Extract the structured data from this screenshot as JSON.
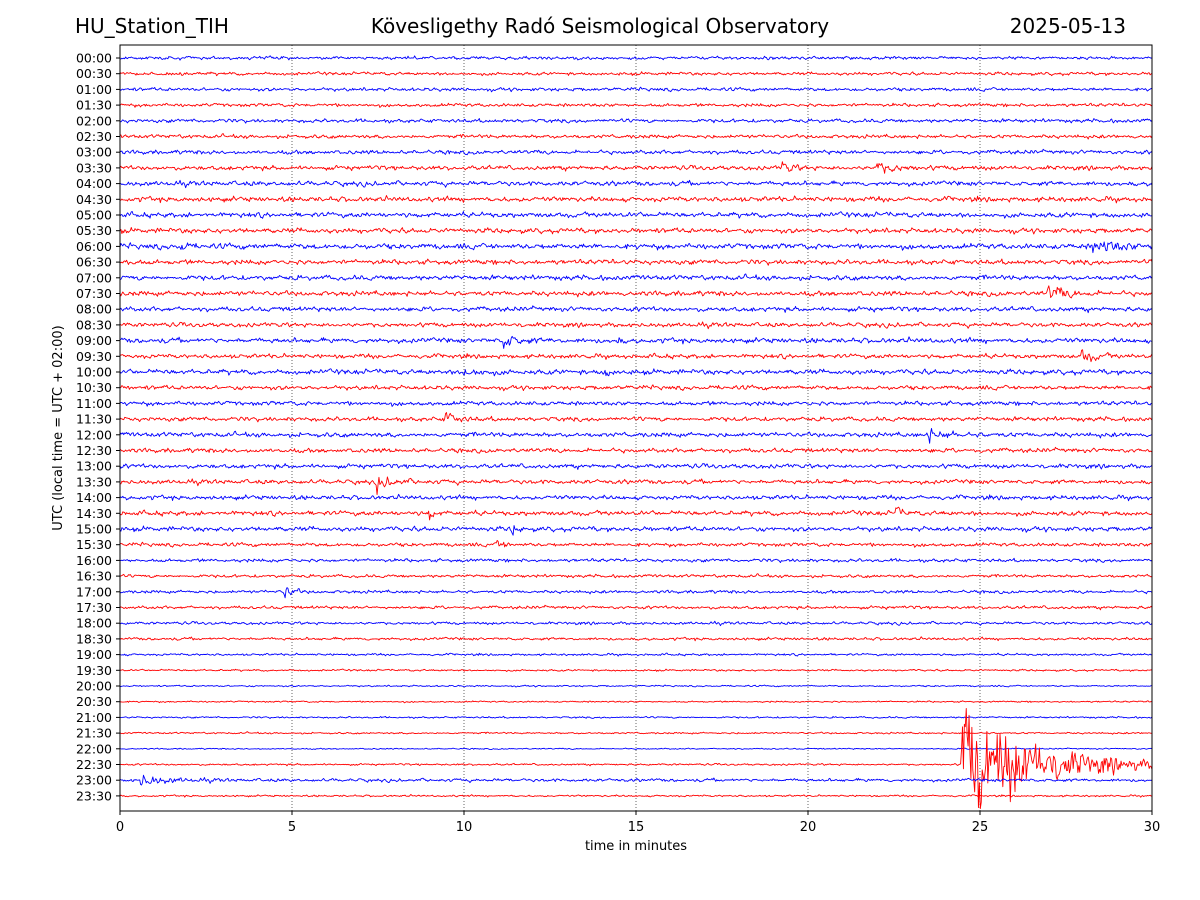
{
  "header": {
    "station": "HU_Station_TIH",
    "observatory": "Kövesligethy Radó Seismological Observatory",
    "date": "2025-05-13"
  },
  "chart_data": {
    "type": "line",
    "subtype": "helicorder",
    "xlabel": "time in minutes",
    "ylabel": "UTC (local time = UTC + 02:00)",
    "xlim": [
      0,
      30
    ],
    "x_ticks": [
      "0",
      "5",
      "10",
      "15",
      "20",
      "25",
      "30"
    ],
    "vertical_grid": true,
    "grid_style": "dotted",
    "trace_colors": [
      "#0000ff",
      "#ff0000"
    ],
    "color_rule": "alternating per row: 00 minute rows blue, 30 minute rows red",
    "rows": [
      "00:00",
      "00:30",
      "01:00",
      "01:30",
      "02:00",
      "02:30",
      "03:00",
      "03:30",
      "04:00",
      "04:30",
      "05:00",
      "05:30",
      "06:00",
      "06:30",
      "07:00",
      "07:30",
      "08:00",
      "08:30",
      "09:00",
      "09:30",
      "10:00",
      "10:30",
      "11:00",
      "11:30",
      "12:00",
      "12:30",
      "13:00",
      "13:30",
      "14:00",
      "14:30",
      "15:00",
      "15:30",
      "16:00",
      "16:30",
      "17:00",
      "17:30",
      "18:00",
      "18:30",
      "19:00",
      "19:30",
      "20:00",
      "20:30",
      "21:00",
      "21:30",
      "22:00",
      "22:30",
      "23:00",
      "23:30"
    ],
    "row_noise_level": [
      0.5,
      0.5,
      0.55,
      0.55,
      0.6,
      0.6,
      0.65,
      0.7,
      0.75,
      0.8,
      0.8,
      0.8,
      0.9,
      0.8,
      0.8,
      0.8,
      0.75,
      0.7,
      0.8,
      0.7,
      0.8,
      0.7,
      0.7,
      0.7,
      0.75,
      0.7,
      0.7,
      0.7,
      0.7,
      0.75,
      0.75,
      0.6,
      0.55,
      0.5,
      0.5,
      0.5,
      0.45,
      0.45,
      0.35,
      0.3,
      0.25,
      0.25,
      0.28,
      0.28,
      0.2,
      0.3,
      0.5,
      0.3
    ],
    "events": [
      {
        "row": "03:30",
        "minute": 19.3,
        "amplitude": 1.6,
        "duration_min": 0.8
      },
      {
        "row": "03:30",
        "minute": 22.0,
        "amplitude": 1.6,
        "duration_min": 1.5
      },
      {
        "row": "06:00",
        "minute": 1.8,
        "amplitude": 2.2,
        "duration_min": 0.2
      },
      {
        "row": "06:00",
        "minute": 28.3,
        "amplitude": 2.2,
        "duration_min": 2.0
      },
      {
        "row": "06:30",
        "minute": 0.2,
        "amplitude": 1.8,
        "duration_min": 0.4
      },
      {
        "row": "07:30",
        "minute": 27.0,
        "amplitude": 2.2,
        "duration_min": 1.5
      },
      {
        "row": "09:00",
        "minute": 11.2,
        "amplitude": 2.2,
        "duration_min": 1.0
      },
      {
        "row": "09:00",
        "minute": 14.4,
        "amplitude": 1.8,
        "duration_min": 0.3
      },
      {
        "row": "09:30",
        "minute": 28.0,
        "amplitude": 2.0,
        "duration_min": 1.0
      },
      {
        "row": "10:00",
        "minute": 14.1,
        "amplitude": 2.2,
        "duration_min": 0.3
      },
      {
        "row": "10:00",
        "minute": 10.0,
        "amplitude": 1.5,
        "duration_min": 1.2
      },
      {
        "row": "11:30",
        "minute": 9.5,
        "amplitude": 2.2,
        "duration_min": 0.8
      },
      {
        "row": "12:00",
        "minute": 23.5,
        "amplitude": 1.8,
        "duration_min": 1.5
      },
      {
        "row": "13:30",
        "minute": 7.5,
        "amplitude": 2.0,
        "duration_min": 1.2
      },
      {
        "row": "14:30",
        "minute": 9.0,
        "amplitude": 2.2,
        "duration_min": 0.3
      },
      {
        "row": "14:30",
        "minute": 22.6,
        "amplitude": 1.8,
        "duration_min": 0.3
      },
      {
        "row": "15:00",
        "minute": 11.4,
        "amplitude": 1.8,
        "duration_min": 0.4
      },
      {
        "row": "15:30",
        "minute": 11.0,
        "amplitude": 1.5,
        "duration_min": 0.5
      },
      {
        "row": "17:00",
        "minute": 4.8,
        "amplitude": 2.5,
        "duration_min": 0.6
      },
      {
        "row": "22:30",
        "minute": 24.5,
        "amplitude": 22.0,
        "duration_min": 5.5
      },
      {
        "row": "23:00",
        "minute": 0.6,
        "amplitude": 1.8,
        "duration_min": 2.0
      }
    ]
  }
}
